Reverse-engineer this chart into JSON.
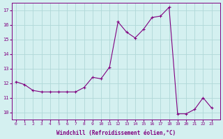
{
  "x": [
    0,
    1,
    2,
    3,
    4,
    5,
    6,
    7,
    8,
    9,
    10,
    11,
    12,
    13,
    14,
    15,
    16,
    17,
    18,
    19,
    20,
    21,
    22,
    23
  ],
  "y": [
    12.1,
    11.9,
    11.5,
    11.4,
    11.4,
    11.4,
    11.4,
    11.4,
    11.7,
    12.4,
    12.3,
    13.1,
    16.2,
    15.5,
    15.1,
    15.7,
    16.5,
    16.6,
    17.2,
    9.9,
    9.9,
    10.2,
    11.0,
    10.3
  ],
  "line_color": "#800080",
  "marker": "+",
  "bg_color": "#d4f0f0",
  "grid_color": "#b0d8d8",
  "text_color": "#800080",
  "xlabel": "Windchill (Refroidissement éolien,°C)",
  "ylim": [
    9.5,
    17.5
  ],
  "xlim": [
    -0.5,
    24
  ],
  "yticks": [
    10,
    11,
    12,
    13,
    14,
    15,
    16,
    17
  ],
  "xticks": [
    0,
    1,
    2,
    3,
    4,
    5,
    6,
    7,
    8,
    9,
    10,
    11,
    12,
    13,
    14,
    15,
    16,
    17,
    18,
    19,
    20,
    21,
    22,
    23
  ]
}
